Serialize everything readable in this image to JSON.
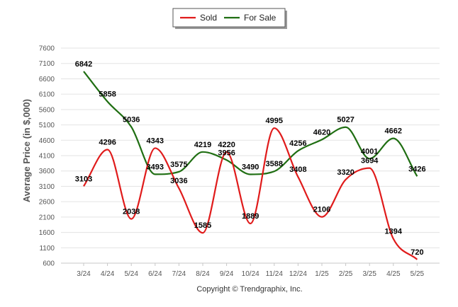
{
  "chart_data": {
    "type": "line",
    "categories": [
      "3/24",
      "4/24",
      "5/24",
      "6/24",
      "7/24",
      "8/24",
      "9/24",
      "10/24",
      "11/24",
      "12/24",
      "1/25",
      "2/25",
      "3/25",
      "4/25",
      "5/25"
    ],
    "series": [
      {
        "name": "Sold",
        "color": "#e01b1b",
        "values": [
          3103,
          4296,
          2038,
          4343,
          3036,
          1585,
          4220,
          1889,
          4995,
          3408,
          2106,
          3320,
          3694,
          1394,
          720
        ]
      },
      {
        "name": "For Sale",
        "color": "#1f6e12",
        "values": [
          6842,
          5858,
          5036,
          3493,
          3575,
          4219,
          3956,
          3490,
          3588,
          4256,
          4620,
          5027,
          4001,
          4662,
          3426
        ]
      }
    ],
    "ylabel": "Average Price (in $,000)",
    "xlabel": "",
    "yticks": [
      600,
      1100,
      1600,
      2100,
      2600,
      3100,
      3600,
      4100,
      4600,
      5100,
      5600,
      6100,
      6600,
      7100,
      7600
    ],
    "ylim": [
      600,
      7600
    ],
    "grid": true,
    "legend_position": "top-center",
    "smooth": true
  },
  "footer": {
    "credit": "Copyright © Trendgraphix, Inc."
  }
}
